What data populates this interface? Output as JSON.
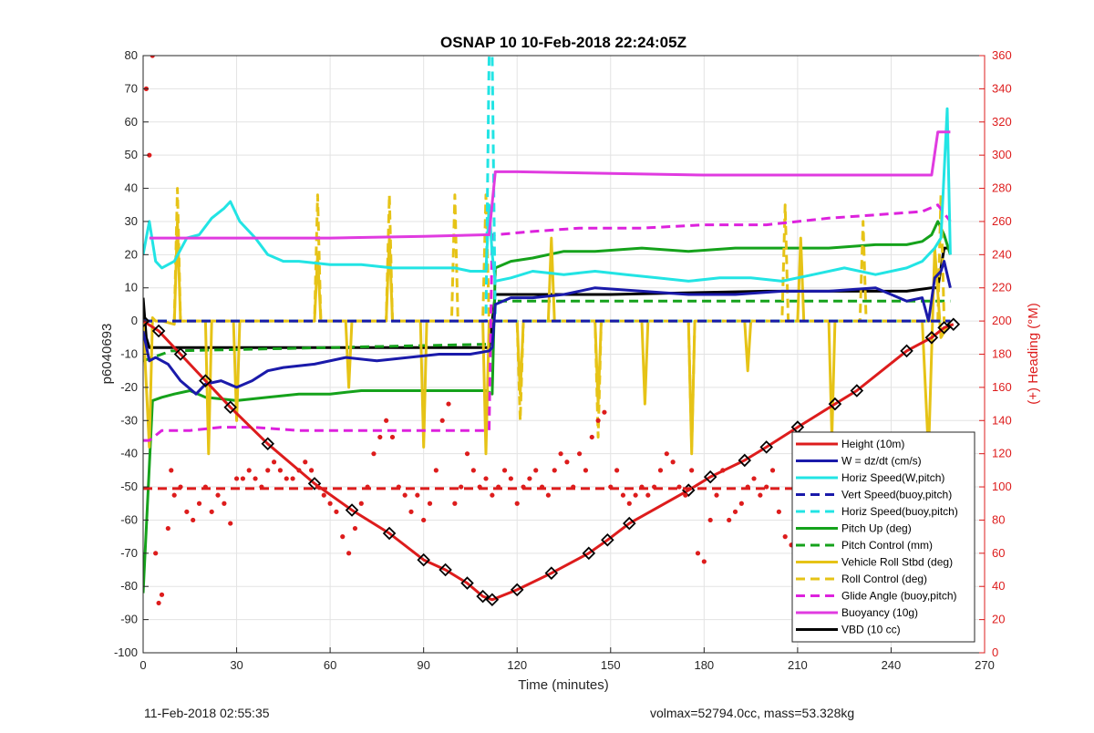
{
  "chart_data": {
    "type": "line",
    "title": "OSNAP 10 10-Feb-2018 22:24:05Z",
    "xlabel": "Time (minutes)",
    "ylabel": "p6040693",
    "y2label": "(+) Heading (°M)",
    "xlim": [
      0,
      270
    ],
    "ylim": [
      -100,
      80
    ],
    "y2lim": [
      0,
      360
    ],
    "xticks": [
      0,
      30,
      60,
      90,
      120,
      150,
      180,
      210,
      240,
      270
    ],
    "yticks": [
      -100,
      -90,
      -80,
      -70,
      -60,
      -50,
      -40,
      -30,
      -20,
      -10,
      0,
      10,
      20,
      30,
      40,
      50,
      60,
      70,
      80
    ],
    "y2ticks": [
      0,
      20,
      40,
      60,
      80,
      100,
      120,
      140,
      160,
      180,
      200,
      220,
      240,
      260,
      280,
      300,
      320,
      340,
      360
    ],
    "grid": true,
    "legend_position": "bottom-right",
    "series": [
      {
        "name": "Height (10m)",
        "color": "#dd1c1c",
        "style": "solid",
        "marker": "diamond",
        "x": [
          0,
          5,
          12,
          20,
          28,
          40,
          55,
          67,
          79,
          90,
          97,
          104,
          109,
          112,
          120,
          131,
          143,
          149,
          156,
          175,
          182,
          193,
          200,
          210,
          222,
          229,
          245,
          253,
          257,
          260
        ],
        "y": [
          0,
          -3,
          -10,
          -18,
          -26,
          -37,
          -49,
          -57,
          -64,
          -72,
          -75,
          -79,
          -83,
          -84,
          -81,
          -76,
          -70,
          -66,
          -61,
          -51,
          -47,
          -42,
          -38,
          -32,
          -25,
          -21,
          -9,
          -5,
          -2,
          -1
        ]
      },
      {
        "name": "W = dz/dt (cm/s)",
        "color": "#1a1aaa",
        "style": "solid",
        "x": [
          0,
          2,
          4,
          8,
          12,
          17,
          20,
          25,
          30,
          35,
          40,
          45,
          55,
          65,
          75,
          85,
          95,
          105,
          111,
          112,
          113,
          118,
          125,
          135,
          145,
          160,
          175,
          190,
          205,
          220,
          235,
          245,
          250,
          252,
          254,
          256,
          257,
          259
        ],
        "y": [
          -3,
          -12,
          -11,
          -13,
          -18,
          -22,
          -19,
          -18,
          -20,
          -18,
          -15,
          -14,
          -13,
          -11,
          -12,
          -11,
          -10,
          -10,
          -9,
          -8,
          5,
          7,
          7,
          8,
          10,
          9,
          8,
          8,
          9,
          9,
          10,
          6,
          7,
          0,
          13,
          15,
          18,
          10
        ]
      },
      {
        "name": "Horiz Speed(W,pitch)",
        "color": "#22e4e4",
        "style": "solid",
        "x": [
          0,
          2,
          4,
          6,
          10,
          14,
          18,
          22,
          26,
          28,
          31,
          36,
          40,
          45,
          50,
          60,
          70,
          80,
          90,
          100,
          105,
          110,
          111,
          112,
          113,
          118,
          125,
          135,
          145,
          155,
          165,
          175,
          185,
          195,
          205,
          215,
          225,
          235,
          245,
          250,
          252,
          254,
          256,
          258,
          259
        ],
        "y": [
          20,
          30,
          18,
          16,
          18,
          25,
          26,
          31,
          34,
          36,
          30,
          25,
          20,
          18,
          18,
          17,
          17,
          16,
          16,
          16,
          15,
          15,
          35,
          20,
          12,
          13,
          15,
          14,
          15,
          14,
          13,
          12,
          13,
          13,
          12,
          14,
          16,
          14,
          16,
          18,
          20,
          22,
          25,
          64,
          20
        ]
      },
      {
        "name": "Vert Speed(buoy,pitch)",
        "color": "#1a1aaa",
        "style": "dashed",
        "x": [
          0,
          259
        ],
        "y": [
          0,
          0
        ]
      },
      {
        "name": "Horiz Speed(buoy,pitch)",
        "color": "#22e4e4",
        "style": "dashed",
        "x": [
          0,
          110,
          111,
          112,
          113,
          259
        ],
        "y": [
          0,
          0,
          80,
          80,
          0,
          0
        ]
      },
      {
        "name": "Pitch Up (deg)",
        "color": "#15a21b",
        "style": "solid",
        "x": [
          0,
          3,
          6,
          10,
          15,
          20,
          30,
          40,
          50,
          60,
          70,
          80,
          90,
          100,
          110,
          112,
          113,
          118,
          125,
          135,
          145,
          160,
          175,
          190,
          205,
          220,
          235,
          245,
          250,
          253,
          255,
          257,
          259
        ],
        "y": [
          -82,
          -24,
          -23,
          -22,
          -21,
          -23,
          -24,
          -23,
          -22,
          -22,
          -21,
          -21,
          -21,
          -21,
          -21,
          -22,
          16,
          18,
          19,
          21,
          21,
          22,
          21,
          22,
          22,
          22,
          23,
          23,
          24,
          26,
          30,
          26,
          20
        ]
      },
      {
        "name": "Pitch Control (mm)",
        "color": "#15a21b",
        "style": "dashed",
        "x": [
          0,
          9,
          110,
          111,
          113,
          259
        ],
        "y": [
          -12,
          -9,
          -7,
          -7,
          6,
          6
        ]
      },
      {
        "name": "Vehicle Roll Stbd (deg)",
        "color": "#e6c316",
        "style": "solid",
        "x": [
          0,
          2,
          3,
          4,
          6,
          10,
          11,
          12,
          20,
          21,
          22,
          29,
          30,
          31,
          55,
          56,
          57,
          65,
          66,
          67,
          78,
          79,
          80,
          89,
          90,
          91,
          109,
          110,
          111,
          120,
          121,
          122,
          130,
          131,
          132,
          145,
          146,
          147,
          150,
          160,
          161,
          162,
          175,
          176,
          177,
          185,
          193,
          194,
          195,
          210,
          211,
          212,
          220,
          221,
          222,
          250,
          252,
          254,
          256,
          259
        ],
        "y": [
          0,
          -38,
          1,
          0,
          0,
          -1,
          30,
          0,
          0,
          -40,
          0,
          0,
          -30,
          0,
          0,
          20,
          0,
          0,
          -20,
          0,
          0,
          25,
          0,
          0,
          -38,
          0,
          0,
          -40,
          0,
          0,
          -22,
          0,
          0,
          25,
          0,
          0,
          -25,
          0,
          0,
          0,
          -25,
          0,
          0,
          -40,
          0,
          0,
          0,
          -15,
          0,
          0,
          25,
          0,
          0,
          -35,
          0,
          0,
          -40,
          22,
          -5,
          0
        ]
      },
      {
        "name": "Roll Control (deg)",
        "color": "#e6c316",
        "style": "dashed",
        "x": [
          0,
          10,
          11,
          12,
          55,
          56,
          57,
          78,
          79,
          80,
          99,
          100,
          101,
          109,
          110,
          111,
          120,
          121,
          122,
          145,
          146,
          147,
          175,
          176,
          177,
          205,
          206,
          207,
          230,
          231,
          232,
          255,
          256,
          257,
          259
        ],
        "y": [
          0,
          0,
          40,
          0,
          0,
          38,
          0,
          0,
          38,
          0,
          0,
          38,
          0,
          0,
          38,
          0,
          0,
          -30,
          0,
          0,
          -35,
          0,
          0,
          -38,
          0,
          0,
          35,
          0,
          0,
          30,
          0,
          0,
          38,
          0,
          0
        ]
      },
      {
        "name": "Glide Angle (buoy,pitch)",
        "color": "#dd22dd",
        "style": "dashed",
        "x": [
          0,
          2,
          6,
          15,
          25,
          35,
          50,
          70,
          90,
          110,
          111,
          112,
          113,
          125,
          140,
          160,
          180,
          200,
          220,
          235,
          250,
          255,
          259
        ],
        "y": [
          -36,
          -36,
          -33,
          -33,
          -32,
          -32,
          -33,
          -33,
          -33,
          -33,
          -33,
          26,
          26,
          27,
          28,
          28,
          29,
          29,
          31,
          32,
          33,
          35,
          30
        ]
      },
      {
        "name": "Buoyancy (10g)",
        "color": "#e03be0",
        "style": "solid",
        "x": [
          2,
          30,
          60,
          90,
          110,
          111,
          113,
          120,
          150,
          180,
          210,
          240,
          253,
          255,
          257,
          259
        ],
        "y": [
          25,
          25,
          25,
          25.5,
          26,
          26,
          45,
          45,
          44.5,
          44,
          44,
          44,
          44,
          57,
          57,
          57
        ]
      },
      {
        "name": "VBD (10 cc)",
        "color": "#000000",
        "style": "solid",
        "x": [
          0,
          1,
          2,
          110,
          111,
          113,
          150,
          200,
          245,
          253,
          255,
          257,
          259
        ],
        "y": [
          7,
          -5,
          -8,
          -8,
          -8,
          8,
          8,
          9,
          9,
          10,
          10,
          22,
          22
        ]
      },
      {
        "name": "",
        "axis": "right",
        "color": "#dd1c1c",
        "style": "markers",
        "x": [
          1,
          2,
          3,
          4,
          5,
          6,
          8,
          9,
          10,
          12,
          14,
          16,
          18,
          20,
          22,
          24,
          26,
          28,
          30,
          32,
          34,
          36,
          38,
          40,
          42,
          44,
          46,
          48,
          50,
          52,
          54,
          56,
          58,
          60,
          62,
          64,
          66,
          68,
          70,
          72,
          74,
          76,
          78,
          80,
          82,
          84,
          86,
          88,
          90,
          92,
          94,
          96,
          98,
          100,
          102,
          104,
          106,
          108,
          110,
          112,
          114,
          116,
          118,
          120,
          122,
          124,
          126,
          128,
          130,
          132,
          134,
          136,
          138,
          140,
          142,
          144,
          146,
          148,
          150,
          152,
          154,
          156,
          158,
          160,
          162,
          164,
          166,
          168,
          170,
          172,
          174,
          176,
          178,
          180,
          182,
          184,
          186,
          188,
          190,
          192,
          194,
          196,
          198,
          200,
          202,
          204,
          206,
          208,
          210,
          212,
          214,
          216,
          218,
          220,
          222,
          224,
          226,
          228,
          230,
          232,
          234,
          236,
          238,
          240,
          242,
          244,
          246,
          248,
          250,
          252,
          254,
          256,
          258
        ],
        "y": [
          340,
          300,
          360,
          60,
          30,
          35,
          75,
          110,
          95,
          100,
          85,
          80,
          90,
          100,
          85,
          95,
          90,
          78,
          105,
          105,
          110,
          105,
          100,
          110,
          115,
          110,
          105,
          105,
          110,
          115,
          110,
          100,
          95,
          90,
          85,
          70,
          60,
          75,
          90,
          100,
          120,
          130,
          140,
          130,
          100,
          95,
          85,
          95,
          80,
          90,
          110,
          140,
          150,
          90,
          100,
          120,
          110,
          100,
          105,
          95,
          100,
          110,
          105,
          90,
          100,
          105,
          110,
          100,
          95,
          110,
          120,
          115,
          100,
          120,
          110,
          130,
          140,
          145,
          100,
          110,
          95,
          90,
          95,
          100,
          95,
          100,
          110,
          120,
          115,
          100,
          95,
          110,
          60,
          55,
          80,
          95,
          110,
          80,
          85,
          90,
          100,
          105,
          95,
          100,
          110,
          85,
          70,
          65,
          90,
          100,
          110,
          100,
          90,
          85,
          80,
          55,
          70,
          75,
          85,
          90,
          95,
          100,
          95,
          80,
          85,
          95,
          100,
          110,
          100,
          100,
          110,
          120,
          110
        ]
      },
      {
        "name": "",
        "axis": "right",
        "color": "#dd1c1c",
        "style": "dashed",
        "x": [
          0,
          259
        ],
        "y": [
          99,
          99
        ]
      }
    ]
  },
  "footer": {
    "left": "11-Feb-2018 02:55:35",
    "right": "volmax=52794.0cc, mass=53.328kg"
  }
}
